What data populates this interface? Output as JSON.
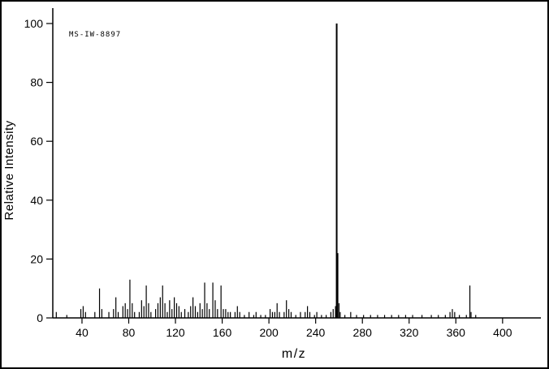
{
  "figure": {
    "annotation": "MS-IW-8897",
    "background": "#ffffff",
    "line_color": "#000000"
  },
  "chart_data": {
    "type": "bar",
    "subtype": "mass-spectrum",
    "title": "",
    "xlabel": "m/z",
    "ylabel": "Relative Intensity",
    "xlim": [
      15,
      430
    ],
    "ylim": [
      0,
      100
    ],
    "grid": false,
    "legend": false,
    "x_ticks": [
      40,
      80,
      120,
      160,
      200,
      240,
      280,
      320,
      360,
      400
    ],
    "y_ticks": [
      0,
      20,
      40,
      60,
      80,
      100
    ],
    "base_peak_mz": 258,
    "base_peak_intensity": 100,
    "peaks": [
      [
        18,
        2
      ],
      [
        27,
        1
      ],
      [
        39,
        3
      ],
      [
        41,
        4
      ],
      [
        43,
        2
      ],
      [
        51,
        2
      ],
      [
        55,
        10
      ],
      [
        57,
        3
      ],
      [
        63,
        2
      ],
      [
        67,
        3
      ],
      [
        69,
        7
      ],
      [
        71,
        2
      ],
      [
        75,
        4
      ],
      [
        77,
        5
      ],
      [
        79,
        3
      ],
      [
        81,
        13
      ],
      [
        83,
        5
      ],
      [
        85,
        2
      ],
      [
        89,
        2
      ],
      [
        91,
        6
      ],
      [
        93,
        4
      ],
      [
        95,
        11
      ],
      [
        97,
        5
      ],
      [
        99,
        2
      ],
      [
        103,
        3
      ],
      [
        105,
        5
      ],
      [
        107,
        7
      ],
      [
        109,
        11
      ],
      [
        111,
        5
      ],
      [
        113,
        2
      ],
      [
        115,
        6
      ],
      [
        117,
        3
      ],
      [
        119,
        7
      ],
      [
        121,
        5
      ],
      [
        123,
        4
      ],
      [
        125,
        2
      ],
      [
        128,
        3
      ],
      [
        131,
        2
      ],
      [
        133,
        4
      ],
      [
        135,
        7
      ],
      [
        137,
        4
      ],
      [
        139,
        2
      ],
      [
        141,
        5
      ],
      [
        143,
        3
      ],
      [
        145,
        12
      ],
      [
        147,
        5
      ],
      [
        149,
        3
      ],
      [
        152,
        12
      ],
      [
        154,
        6
      ],
      [
        156,
        3
      ],
      [
        159,
        11
      ],
      [
        161,
        3
      ],
      [
        163,
        3
      ],
      [
        165,
        2
      ],
      [
        167,
        2
      ],
      [
        171,
        2
      ],
      [
        173,
        4
      ],
      [
        175,
        2
      ],
      [
        179,
        1
      ],
      [
        183,
        2
      ],
      [
        187,
        1
      ],
      [
        189,
        2
      ],
      [
        193,
        1
      ],
      [
        197,
        1
      ],
      [
        201,
        3
      ],
      [
        203,
        2
      ],
      [
        205,
        2
      ],
      [
        207,
        5
      ],
      [
        209,
        2
      ],
      [
        213,
        2
      ],
      [
        215,
        6
      ],
      [
        217,
        3
      ],
      [
        219,
        2
      ],
      [
        223,
        1
      ],
      [
        227,
        2
      ],
      [
        231,
        2
      ],
      [
        233,
        4
      ],
      [
        235,
        2
      ],
      [
        239,
        1
      ],
      [
        241,
        2
      ],
      [
        245,
        1
      ],
      [
        249,
        1
      ],
      [
        253,
        2
      ],
      [
        255,
        3
      ],
      [
        257,
        4
      ],
      [
        258,
        100
      ],
      [
        259,
        22
      ],
      [
        260,
        5
      ],
      [
        261,
        2
      ],
      [
        265,
        1
      ],
      [
        270,
        2
      ],
      [
        275,
        1
      ],
      [
        281,
        1
      ],
      [
        287,
        1
      ],
      [
        293,
        1
      ],
      [
        299,
        1
      ],
      [
        305,
        1
      ],
      [
        311,
        1
      ],
      [
        317,
        1
      ],
      [
        323,
        1
      ],
      [
        331,
        1
      ],
      [
        339,
        1
      ],
      [
        345,
        1
      ],
      [
        351,
        1
      ],
      [
        355,
        2
      ],
      [
        357,
        3
      ],
      [
        359,
        2
      ],
      [
        363,
        1
      ],
      [
        369,
        1
      ],
      [
        372,
        11
      ],
      [
        373,
        2
      ],
      [
        377,
        1
      ]
    ]
  }
}
